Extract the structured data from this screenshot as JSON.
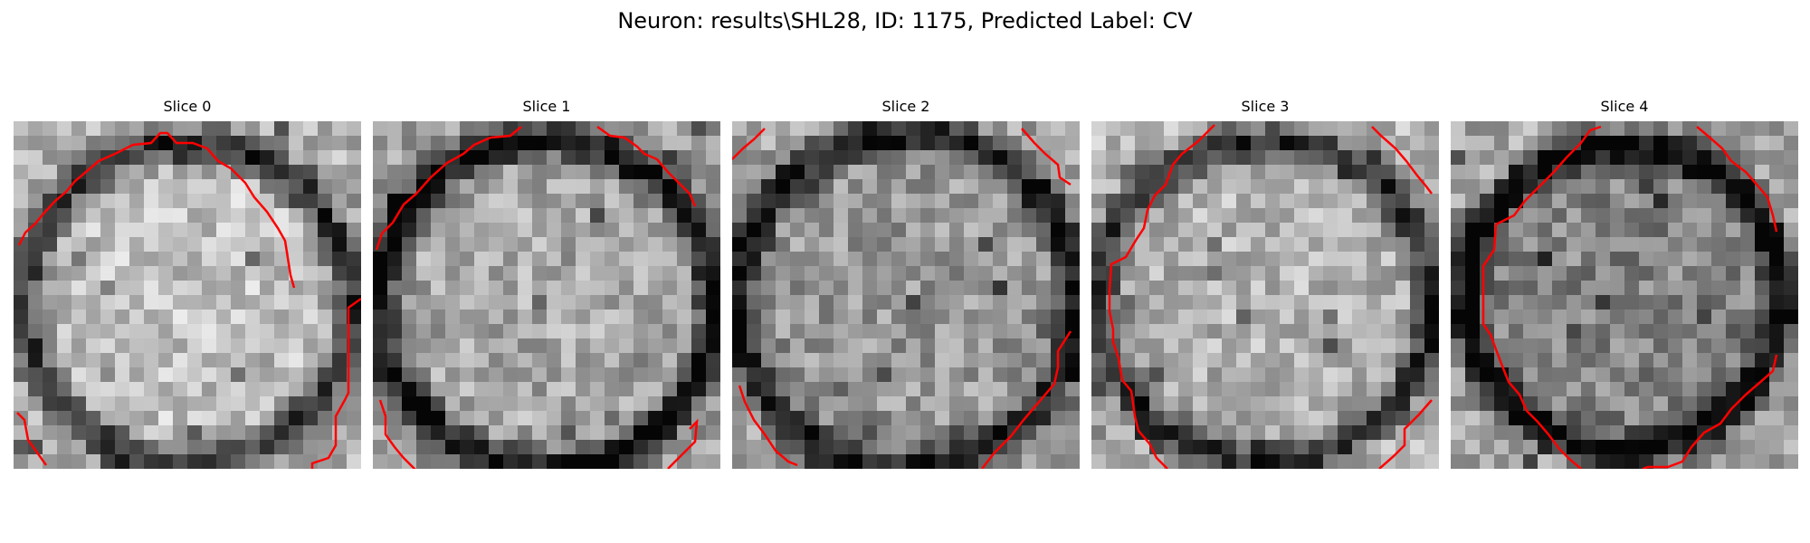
{
  "figure": {
    "title": "Neuron: results\\SHL28, ID: 1175, Predicted Label: CV"
  },
  "slices": [
    {
      "label": "Slice 0"
    },
    {
      "label": "Slice 1"
    },
    {
      "label": "Slice 2"
    },
    {
      "label": "Slice 3"
    },
    {
      "label": "Slice 4"
    }
  ],
  "colors": {
    "contour": "#ff0000",
    "background": "#ffffff"
  }
}
